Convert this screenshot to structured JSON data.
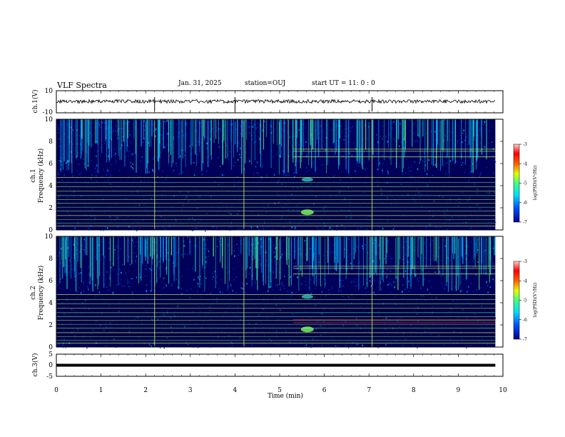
{
  "header": {
    "title": "VLF Spectra",
    "date": "Jan. 31, 2025",
    "station": "station=OUJ",
    "start": "start  UT =   11: 0  : 0"
  },
  "chart_data": [
    {
      "type": "line",
      "panel": "ch1-waveform",
      "ylabel": "ch.1(V)",
      "ylim": [
        -10,
        10
      ],
      "yticks": [
        "10",
        "-10"
      ],
      "x_range_min": [
        0,
        9.83
      ]
    },
    {
      "type": "heatmap",
      "panel": "ch1-spectrogram",
      "ylabel": "ch.1\nFrequency (kHz)",
      "ylabel_lines": [
        "ch.1",
        "Frequency (kHz)"
      ],
      "ylim": [
        0,
        10
      ],
      "yticks": [
        "0",
        "2",
        "4",
        "6",
        "8",
        "10"
      ],
      "colorbar": {
        "label": "log(PSD)(V²/Hz)",
        "range": [
          -7,
          -3
        ],
        "ticks": [
          "-3",
          "-4",
          "-5",
          "-6",
          "-7"
        ]
      }
    },
    {
      "type": "heatmap",
      "panel": "ch2-spectrogram",
      "ylabel_lines": [
        "ch.2",
        "Frequency (kHz)"
      ],
      "ylim": [
        0,
        10
      ],
      "yticks": [
        "0",
        "2",
        "4",
        "6",
        "8",
        "10"
      ],
      "colorbar": {
        "label": "log(PSD)(V²/Hz)",
        "range": [
          -7,
          -3
        ],
        "ticks": [
          "-3",
          "-4",
          "-5",
          "-6",
          "-7"
        ]
      }
    },
    {
      "type": "line",
      "panel": "ch3-waveform",
      "ylabel": "ch.3(V)",
      "ylim": [
        -5,
        5
      ],
      "yticks": [
        "5",
        "0",
        "-5"
      ]
    }
  ],
  "xaxis": {
    "label": "Time (min)",
    "range": [
      0,
      10
    ],
    "ticks": [
      "0",
      "1",
      "2",
      "3",
      "4",
      "5",
      "6",
      "7",
      "8",
      "9",
      "10"
    ]
  },
  "colors": {
    "background": "#00005a",
    "line": "#ccee55",
    "colormap": [
      "#00008f",
      "#0060ff",
      "#00dfff",
      "#40ff80",
      "#dfff00",
      "#ff6000",
      "#ff0000",
      "#ffb0b0"
    ]
  }
}
